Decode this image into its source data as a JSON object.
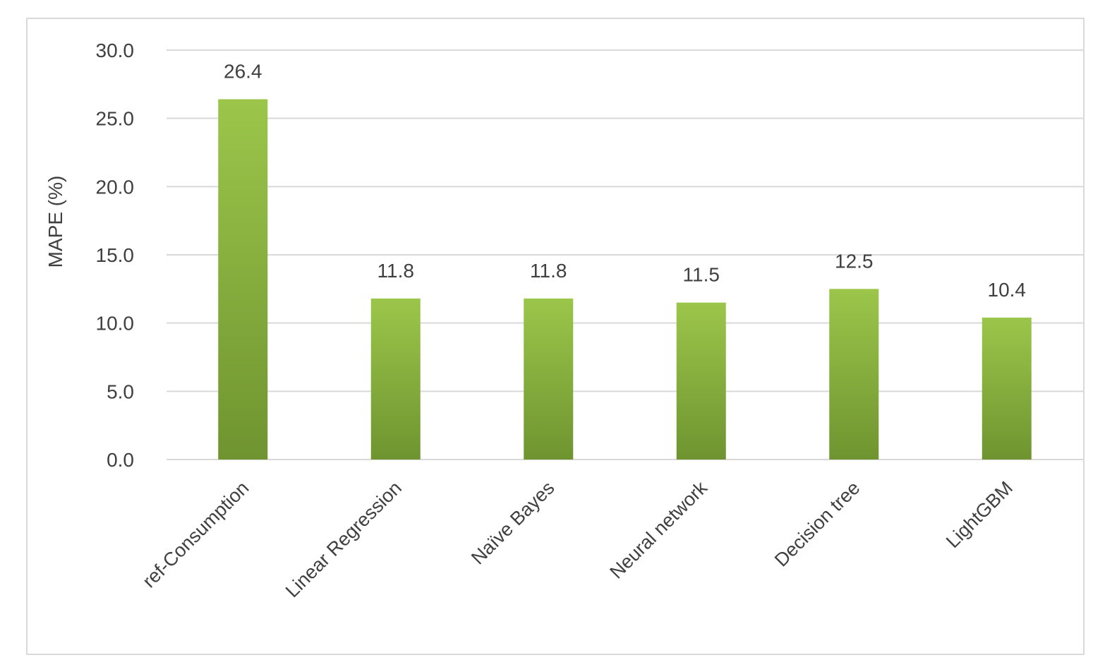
{
  "chart_data": {
    "type": "bar",
    "title": "",
    "xlabel": "",
    "ylabel": "MAPE (%)",
    "categories": [
      "ref-Consumption",
      "Linear Regression",
      "Naïve Bayes",
      "Neural network",
      "Decision tree",
      "LightGBM"
    ],
    "values": [
      26.4,
      11.8,
      11.8,
      11.5,
      12.5,
      10.4
    ],
    "data_labels": [
      "26.4",
      "11.8",
      "11.8",
      "11.5",
      "12.5",
      "10.4"
    ],
    "ylim": [
      0,
      30
    ],
    "yticks": [
      0,
      5,
      10,
      15,
      20,
      25,
      30
    ],
    "ytick_labels": [
      "0.0",
      "5.0",
      "10.0",
      "15.0",
      "20.0",
      "25.0",
      "30.0"
    ],
    "grid": true,
    "legend": "none",
    "colors": {
      "bar_top": "#9bc64a",
      "bar_bottom": "#6f9430",
      "grid": "#d9d9d9",
      "text": "#404040"
    }
  }
}
